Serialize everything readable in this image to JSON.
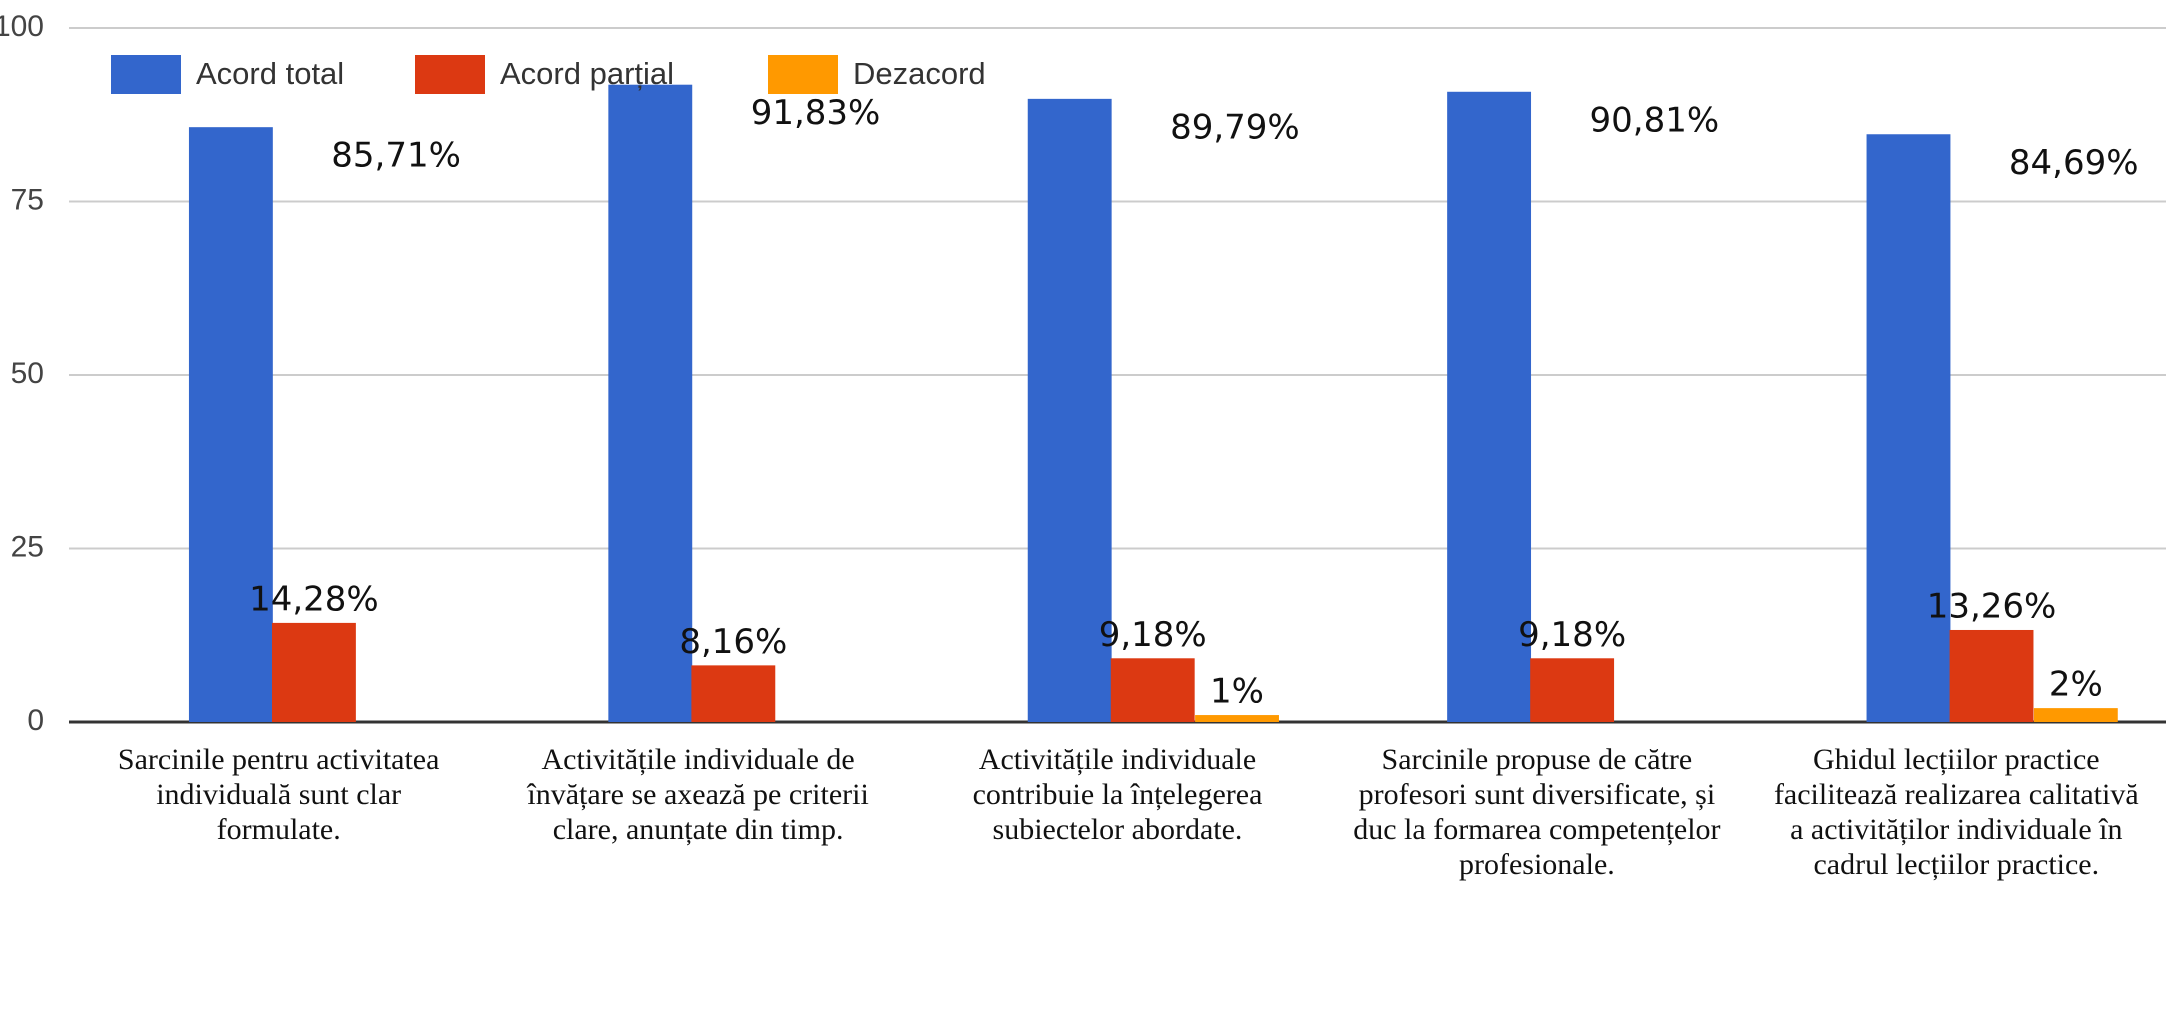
{
  "chart_data": {
    "type": "bar",
    "categories": [
      "Sarcinile pentru activitatea individuală sunt clar formulate.",
      "Activitățile individuale de învățare se axează pe criterii clare, anunțate din timp.",
      "Activitățile individuale contribuie la înțelegerea subiectelor abordate.",
      "Sarcinile propuse de către profesori sunt diversificate, și duc la formarea competențelor profesionale.",
      "Ghidul lecțiilor practice facilitează realizarea calitativă a activităților individuale în cadrul lecțiilor practice."
    ],
    "series": [
      {
        "name": "Acord total",
        "color": "#3366cc",
        "values": [
          85.71,
          91.83,
          89.79,
          90.81,
          84.69
        ],
        "value_labels": [
          "85,71%",
          "91,83%",
          "89,79%",
          "90,81%",
          "84,69%"
        ]
      },
      {
        "name": "Acord parțial",
        "color": "#dc3912",
        "values": [
          14.28,
          8.16,
          9.18,
          9.18,
          13.26
        ],
        "value_labels": [
          "14,28%",
          "8,16%",
          "9,18%",
          "9,18%",
          "13,26%"
        ]
      },
      {
        "name": "Dezacord",
        "color": "#ff9900",
        "values": [
          0,
          0,
          1,
          0,
          2
        ],
        "value_labels": [
          null,
          null,
          "1%",
          null,
          "2%"
        ]
      }
    ],
    "ylim": [
      0,
      100
    ],
    "yticks": [
      0,
      25,
      50,
      75,
      100
    ],
    "grid": true,
    "legend": "top-left"
  }
}
